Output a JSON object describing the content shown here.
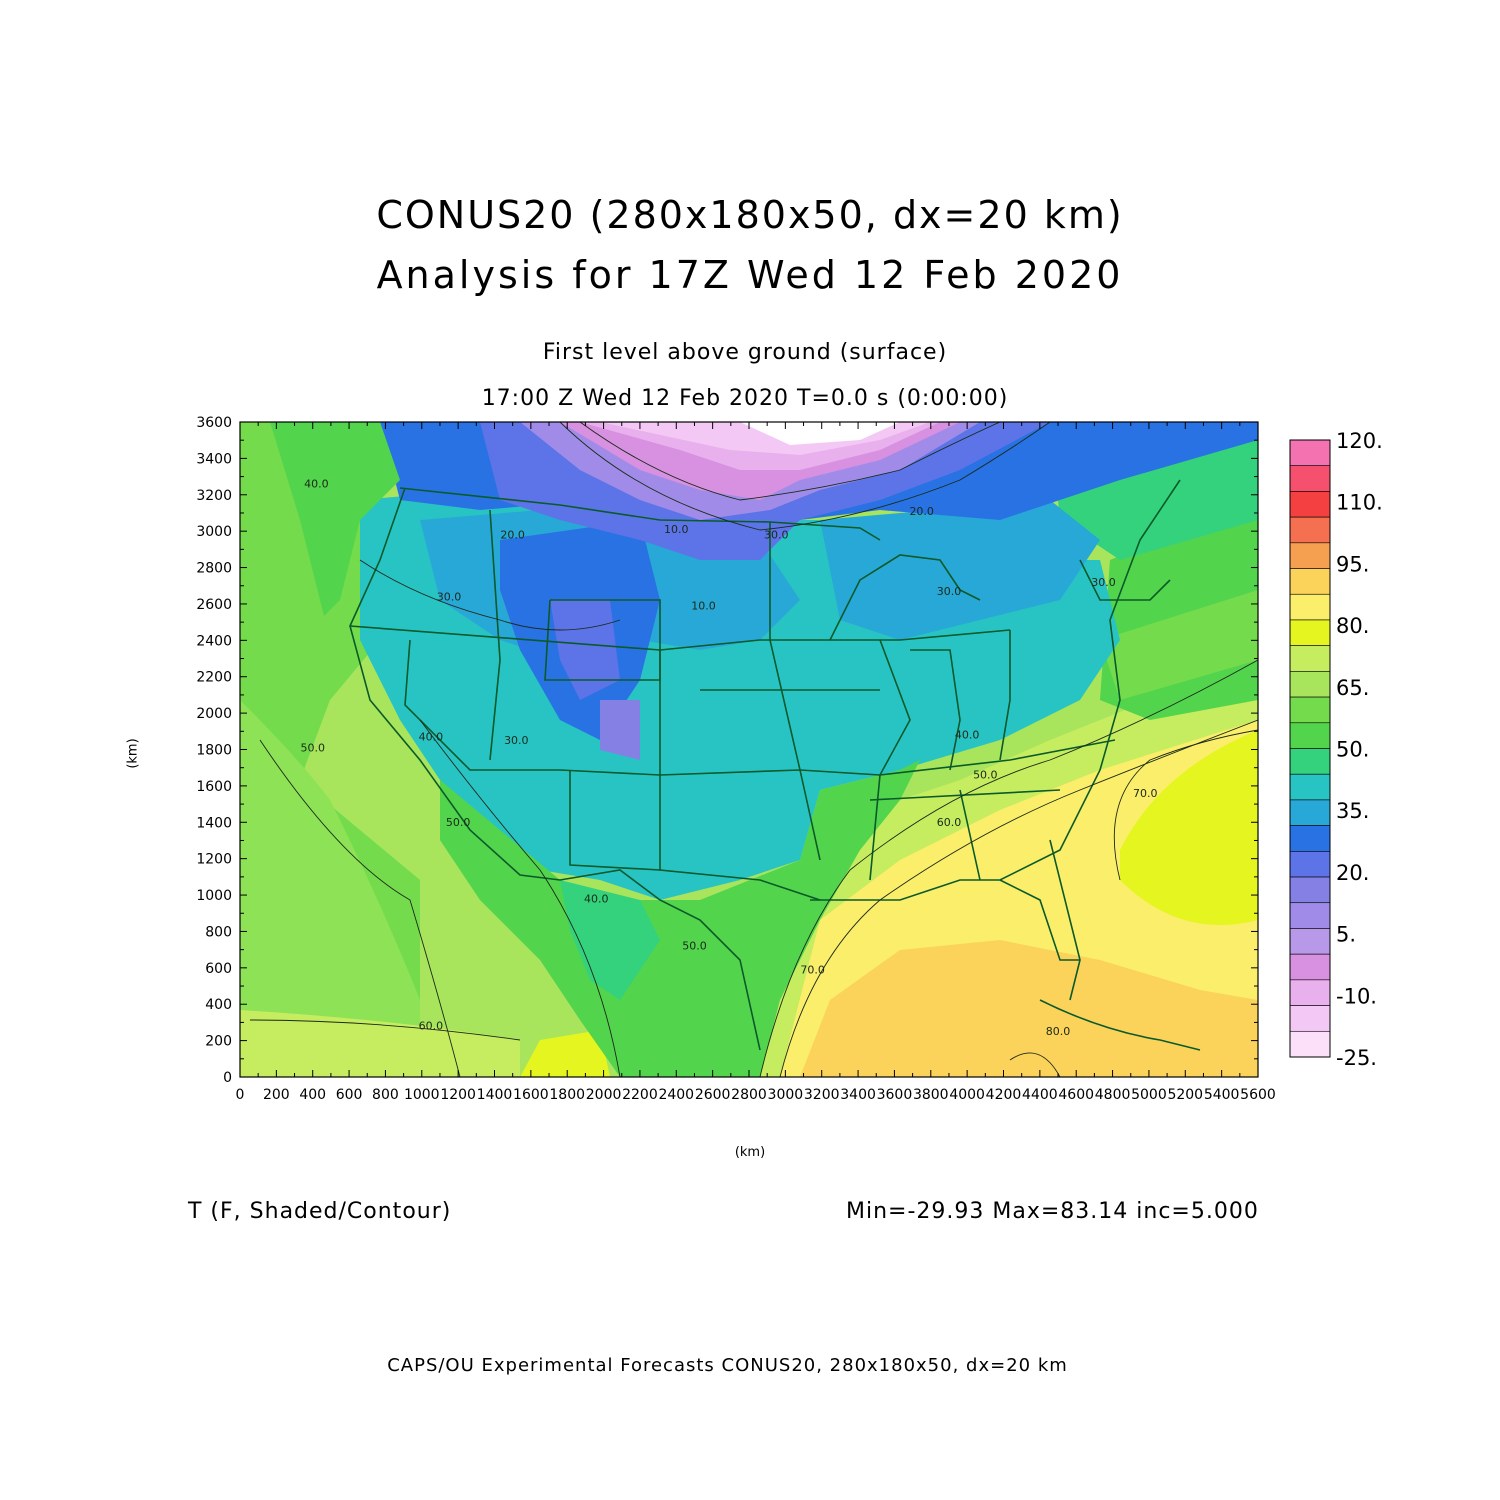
{
  "title": {
    "line1": "CONUS20 (280x180x50, dx=20 km)",
    "line2": "Analysis for 17Z Wed 12 Feb 2020"
  },
  "subtitle": {
    "level": "First level above ground (surface)",
    "time": "17:00 Z Wed 12 Feb 2020    T=0.0 s (0:00:00)"
  },
  "axes": {
    "x_label": "(km)",
    "y_label": "(km)",
    "x_ticks": [
      0,
      200,
      400,
      600,
      800,
      1000,
      1200,
      1400,
      1600,
      1800,
      2000,
      2200,
      2400,
      2600,
      2800,
      3000,
      3200,
      3400,
      3600,
      3800,
      4000,
      4200,
      4400,
      4600,
      4800,
      5000,
      5200,
      5400,
      5600
    ],
    "y_ticks": [
      0,
      200,
      400,
      600,
      800,
      1000,
      1200,
      1400,
      1600,
      1800,
      2000,
      2200,
      2400,
      2600,
      2800,
      3000,
      3200,
      3400,
      3600
    ],
    "x_range": [
      0,
      5600
    ],
    "y_range": [
      0,
      3600
    ]
  },
  "colorbar": {
    "labels": [
      "120.",
      "110.",
      "95.",
      "80.",
      "65.",
      "50.",
      "35.",
      "20.",
      "5.",
      "-10.",
      "-25."
    ],
    "colors_top_to_bottom": [
      "#f472b0",
      "#f5506e",
      "#f44040",
      "#f47050",
      "#f5a050",
      "#fbd25a",
      "#fbee6a",
      "#e4f520",
      "#c6ec60",
      "#a8e45c",
      "#74dc4c",
      "#52d44c",
      "#34d27c",
      "#28c4c4",
      "#28a8d6",
      "#2872e4",
      "#5c74e8",
      "#8480e4",
      "#a08ce8",
      "#b898e8",
      "#d890e0",
      "#e8b0ec",
      "#f4c8f4",
      "#fce0fa"
    ]
  },
  "contour_labels": [
    {
      "text": "40.0",
      "x": 420,
      "y": 3240
    },
    {
      "text": "20.0",
      "x": 1500,
      "y": 2960
    },
    {
      "text": "10.0",
      "x": 2400,
      "y": 2990
    },
    {
      "text": "30.0",
      "x": 2950,
      "y": 2960
    },
    {
      "text": "20.0",
      "x": 3750,
      "y": 3090
    },
    {
      "text": "30.0",
      "x": 1150,
      "y": 2620
    },
    {
      "text": "10.0",
      "x": 2550,
      "y": 2570
    },
    {
      "text": "30.0",
      "x": 3900,
      "y": 2650
    },
    {
      "text": "30.0",
      "x": 4750,
      "y": 2700
    },
    {
      "text": "50.0",
      "x": 400,
      "y": 1790
    },
    {
      "text": "40.0",
      "x": 1050,
      "y": 1850
    },
    {
      "text": "30.0",
      "x": 1520,
      "y": 1830
    },
    {
      "text": "50.0",
      "x": 1200,
      "y": 1380
    },
    {
      "text": "40.0",
      "x": 4000,
      "y": 1860
    },
    {
      "text": "50.0",
      "x": 4100,
      "y": 1640
    },
    {
      "text": "60.0",
      "x": 3900,
      "y": 1380
    },
    {
      "text": "70.0",
      "x": 4980,
      "y": 1540
    },
    {
      "text": "40.0",
      "x": 1960,
      "y": 960
    },
    {
      "text": "50.0",
      "x": 2500,
      "y": 700
    },
    {
      "text": "70.0",
      "x": 3150,
      "y": 570
    },
    {
      "text": "60.0",
      "x": 1050,
      "y": 260
    },
    {
      "text": "80.0",
      "x": 4500,
      "y": 230
    }
  ],
  "field_label": "T (F, Shaded/Contour)",
  "stats": "Min=-29.93  Max=83.14  inc=5.000",
  "footer": "CAPS/OU Experimental Forecasts  CONUS20, 280x180x50, dx=20 km"
}
